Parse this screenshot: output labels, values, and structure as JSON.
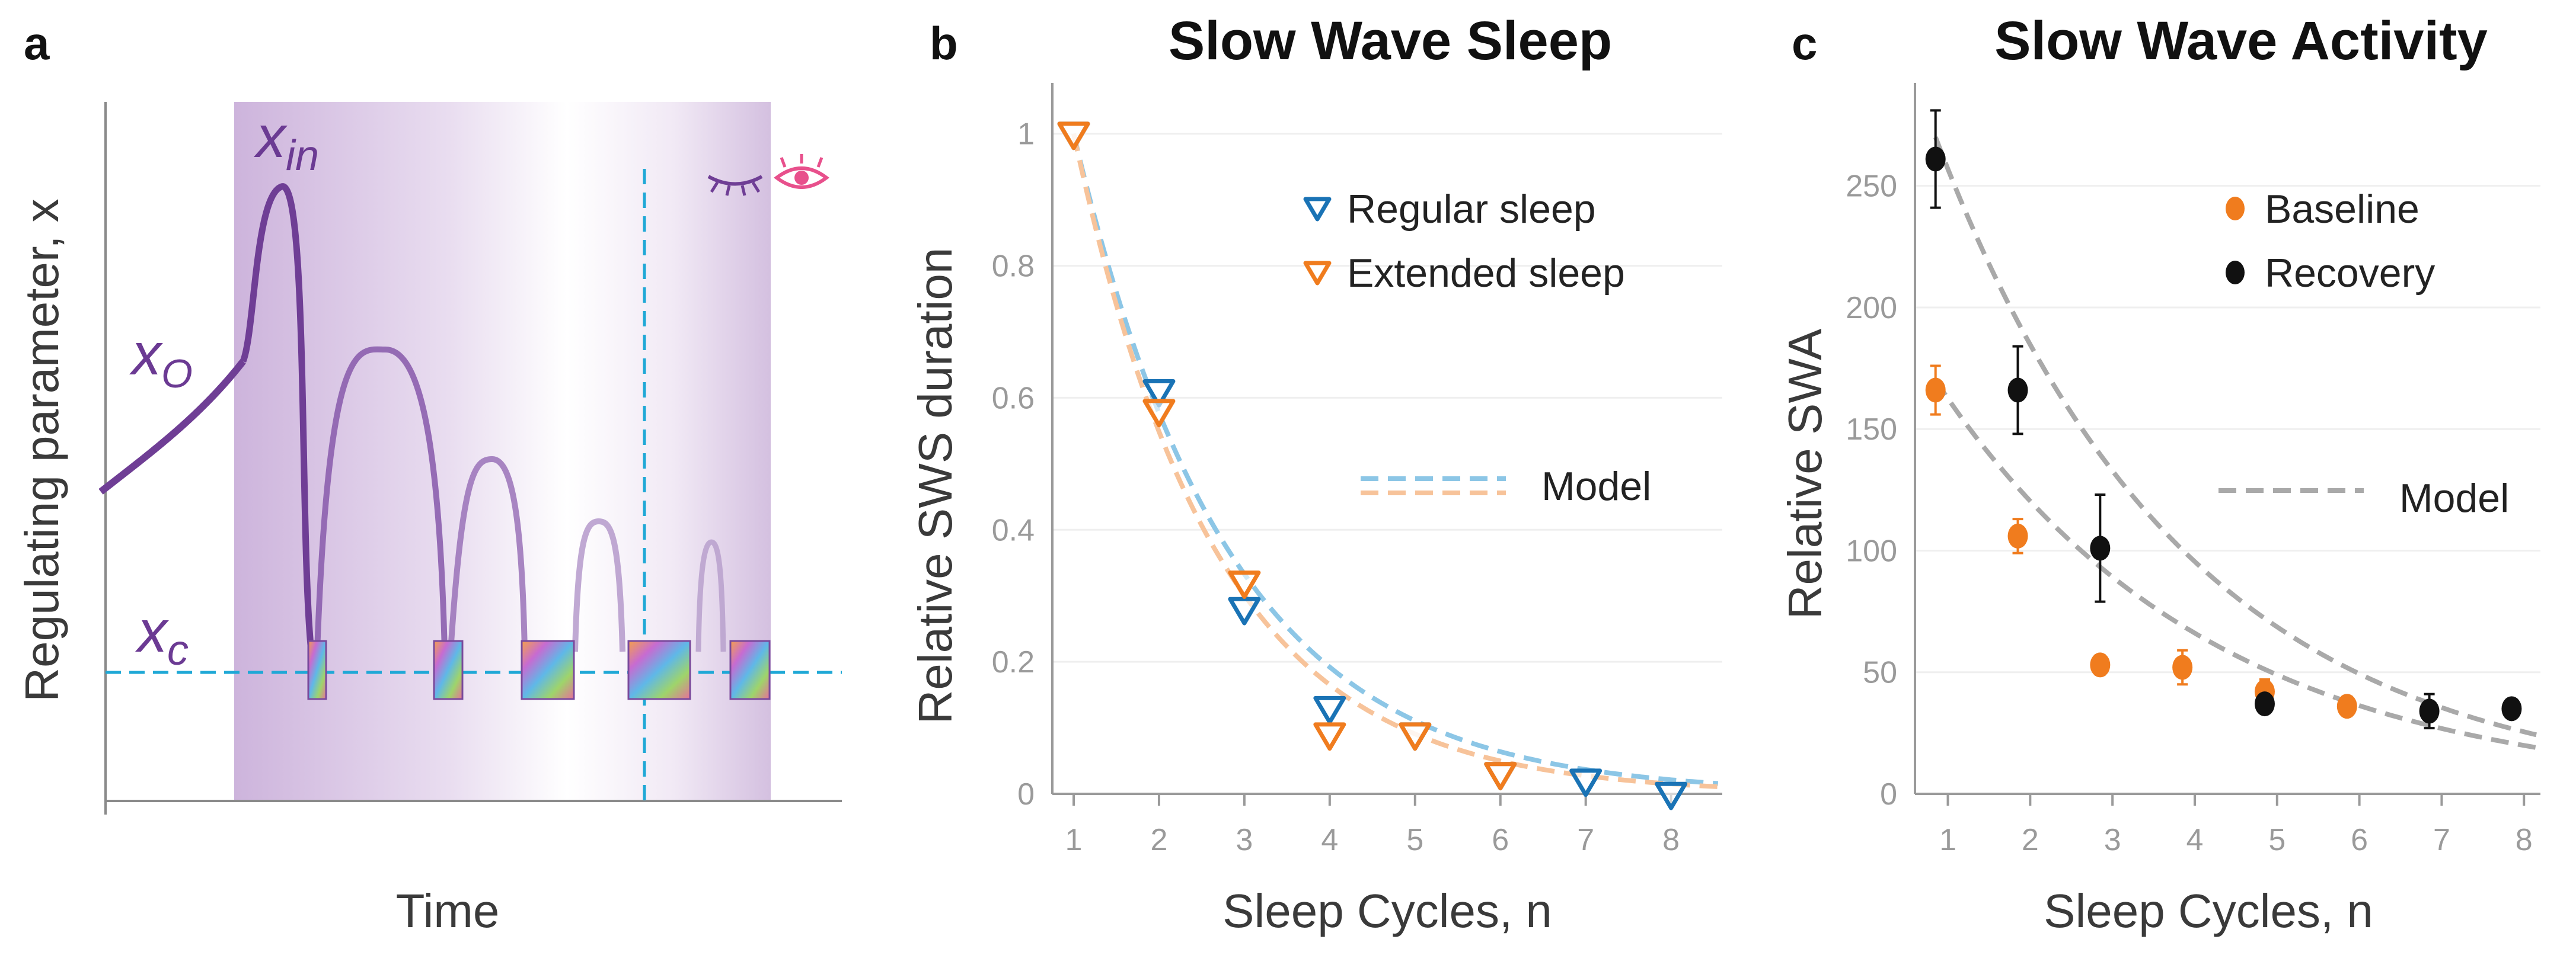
{
  "panels": {
    "a": {
      "letter": "a",
      "ylabel": "Regulating parameter, x",
      "xlabel": "Time",
      "labels": {
        "x_in_main": "x",
        "x_in_sub": "in",
        "x_o_main": "x",
        "x_o_sub": "O",
        "x_c_main": "x",
        "x_c_sub": "c"
      },
      "colors": {
        "curve": "#7a4a9c",
        "threshold": "#1fa8d6",
        "shade": "#d9c6e4"
      },
      "icons": [
        "closed-eye-icon",
        "open-eye-icon"
      ]
    },
    "b": {
      "letter": "b"
    },
    "c": {
      "letter": "c"
    }
  },
  "chart_data": [
    {
      "type": "scatter",
      "title": "Slow Wave Sleep",
      "xlabel": "Sleep Cycles, n",
      "ylabel": "Relative SWS duration",
      "xlim": [
        0.75,
        8.6
      ],
      "ylim": [
        0,
        1.05
      ],
      "xticks": [
        "1",
        "2",
        "3",
        "4",
        "5",
        "6",
        "7",
        "8"
      ],
      "yticks": [
        "0",
        "0.2",
        "0.4",
        "0.6",
        "0.8",
        "1"
      ],
      "legend_position": "top-right",
      "series": [
        {
          "name": "Regular sleep",
          "color": "#1a73b5",
          "marker": "triangle-down-open",
          "x": [
            1,
            2,
            3,
            4,
            5,
            6,
            7,
            8
          ],
          "y": [
            1.0,
            0.61,
            0.28,
            0.13,
            0.09,
            0.03,
            0.02,
            0.0
          ]
        },
        {
          "name": "Extended sleep",
          "color": "#f07c1e",
          "marker": "triangle-down-open",
          "x": [
            1,
            2,
            3,
            4,
            5,
            6
          ],
          "y": [
            1.0,
            0.58,
            0.32,
            0.09,
            0.09,
            0.03
          ]
        }
      ],
      "model": {
        "label": "Model",
        "colors": [
          "#8cc6e6",
          "#f7c39a"
        ],
        "curves": [
          {
            "A": 1.0,
            "k": 0.55
          },
          {
            "A": 1.0,
            "k": 0.6
          }
        ]
      }
    },
    {
      "type": "scatter",
      "title": "Slow Wave Activity",
      "xlabel": "Sleep Cycles, n",
      "ylabel": "Relative SWA",
      "xlim": [
        0.6,
        8.2
      ],
      "ylim": [
        0,
        285
      ],
      "xticks": [
        "1",
        "2",
        "3",
        "4",
        "5",
        "6",
        "7",
        "8"
      ],
      "yticks": [
        "0",
        "50",
        "100",
        "150",
        "200",
        "250"
      ],
      "legend_position": "top-right",
      "series": [
        {
          "name": "Baseline",
          "color": "#f07c1e",
          "marker": "ellipse",
          "x": [
            0.85,
            1.85,
            2.85,
            3.85,
            4.85,
            5.85
          ],
          "y": [
            166,
            106,
            53,
            52,
            42,
            36
          ],
          "err": [
            10,
            7,
            4,
            7,
            5,
            4
          ]
        },
        {
          "name": "Recovery",
          "color": "#111111",
          "marker": "ellipse",
          "x": [
            0.85,
            1.85,
            2.85,
            4.85,
            6.85,
            7.85
          ],
          "y": [
            261,
            166,
            101,
            37,
            34,
            35
          ],
          "err": [
            20,
            18,
            22,
            3,
            7,
            3
          ]
        }
      ],
      "model": {
        "label": "Model",
        "colors": [
          "#a9a9a9",
          "#a9a9a9"
        ],
        "curves": [
          {
            "A": 270,
            "k": 0.33,
            "x0": 0.85
          },
          {
            "A": 170,
            "k": 0.3,
            "x0": 0.85
          }
        ]
      }
    }
  ]
}
